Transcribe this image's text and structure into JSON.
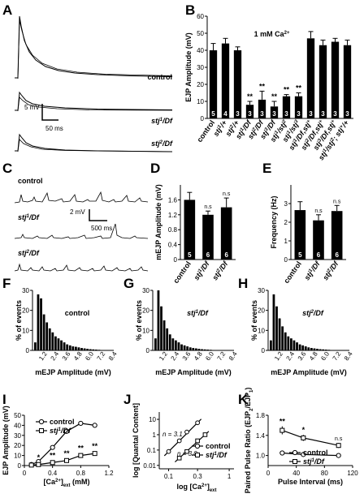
{
  "panel_labels": [
    "A",
    "B",
    "C",
    "D",
    "E",
    "F",
    "G",
    "H",
    "I",
    "J",
    "K"
  ],
  "traces_A": {
    "labels": [
      "control",
      "stj1/Df",
      "stj2/Df"
    ],
    "scale_v": "5 mV",
    "scale_t": "50 ms"
  },
  "traces_C": {
    "labels": [
      "control",
      "stj1/Df",
      "stj2/Df"
    ],
    "scale_v": "2 mV",
    "scale_t": "500 ms"
  },
  "chart_data": [
    {
      "panel": "B",
      "type": "bar",
      "ylabel": "EJP Amplitude (mV)",
      "ylim": [
        0,
        60
      ],
      "yticks": [
        0,
        10,
        20,
        30,
        40,
        50,
        60
      ],
      "annotation": "1 mM Ca2+",
      "categories": [
        "control",
        "stj1/+",
        "stj2/+",
        "stj1/Df",
        "stj2/Df",
        "stj3/Df",
        "stj1/stj2",
        "stj1/stj3",
        "stj1/Df,stj+",
        "stj2/Df,stj+",
        "stj3/Df,stj+",
        "stj1/stj2; stj+/+"
      ],
      "values": [
        40,
        44,
        40,
        8,
        11,
        7,
        13,
        13,
        47,
        43,
        45,
        43
      ],
      "errors": [
        4,
        3,
        2,
        2,
        5,
        3,
        1,
        2,
        4,
        3,
        2,
        3
      ],
      "n": [
        5,
        4,
        3,
        3,
        3,
        3,
        3,
        3,
        3,
        3,
        3,
        3
      ],
      "significance": [
        "",
        "",
        "",
        "**",
        "**",
        "**",
        "**",
        "**",
        "",
        "",
        "",
        ""
      ]
    },
    {
      "panel": "D",
      "type": "bar",
      "ylabel": "mEJP Amplitude (mV)",
      "ylim": [
        0,
        2.0
      ],
      "yticks": [
        0,
        0.4,
        0.8,
        1.2,
        1.6
      ],
      "categories": [
        "control",
        "stj1/Df",
        "stj2/Df"
      ],
      "values": [
        1.6,
        1.2,
        1.4
      ],
      "errors": [
        0.2,
        0.1,
        0.25
      ],
      "n": [
        5,
        6,
        6
      ],
      "significance": [
        "",
        "n.s",
        "n.s"
      ]
    },
    {
      "panel": "E",
      "type": "bar",
      "ylabel": "Frequency (Hz)",
      "ylim": [
        0,
        4
      ],
      "yticks": [
        0,
        1,
        2,
        3
      ],
      "categories": [
        "control",
        "stj1/Df",
        "stj2/Df"
      ],
      "values": [
        2.65,
        2.1,
        2.6
      ],
      "errors": [
        0.45,
        0.3,
        0.3
      ],
      "n": [
        5,
        6,
        6
      ],
      "significance": [
        "",
        "n.s",
        "n.s"
      ]
    },
    {
      "panel": "F",
      "type": "bar",
      "title": "control",
      "xlabel": "mEJP Amplitude (mV)",
      "ylabel": "% of events",
      "ylim": [
        0,
        30
      ],
      "yticks": [
        0,
        10,
        20,
        30
      ],
      "xticks": [
        "1.2",
        "2.4",
        "3.6",
        "4.8",
        "6.0",
        "7.2",
        "8.4"
      ],
      "values": [
        4,
        28,
        26,
        18,
        14,
        11,
        9,
        7,
        6,
        5,
        4,
        3,
        2.5,
        2,
        1.8,
        1.5,
        1.2,
        1,
        0.8,
        0.6,
        0.5,
        0.4,
        0.3,
        0.2,
        0.15,
        0.1
      ]
    },
    {
      "panel": "G",
      "type": "bar",
      "title": "stj1/Df",
      "xlabel": "mEJP Amplitude (mV)",
      "ylabel": "% of events",
      "ylim": [
        0,
        30
      ],
      "yticks": [
        0,
        10,
        20,
        30
      ],
      "xticks": [
        "1.2",
        "2.4",
        "3.6",
        "4.8",
        "6.0",
        "7.2",
        "8.4"
      ],
      "values": [
        6,
        30,
        22,
        15,
        11,
        8,
        6,
        5,
        4,
        3,
        2.5,
        2,
        1.5,
        1.2,
        1,
        0.8,
        0.6,
        0.5,
        0.4,
        0.3,
        0.2,
        0.15,
        0.1,
        0.1
      ]
    },
    {
      "panel": "H",
      "type": "bar",
      "title": "stj2/Df",
      "xlabel": "mEJP Amplitude (mV)",
      "ylabel": "% of events",
      "ylim": [
        0,
        30
      ],
      "yticks": [
        0,
        10,
        20,
        30
      ],
      "xticks": [
        "1.2",
        "2.4",
        "3.6",
        "4.8",
        "6.0",
        "7.2",
        "8.4"
      ],
      "values": [
        5,
        28,
        22,
        16,
        12,
        9,
        7,
        6,
        5,
        4,
        3,
        2.5,
        2,
        1.5,
        1.2,
        1,
        0.8,
        0.6,
        0.5,
        0.4,
        0.3,
        0.2,
        0.15,
        0.1
      ]
    },
    {
      "panel": "I",
      "type": "line",
      "xlabel": "[Ca2+]ext (mM)",
      "ylabel": "EJP Amplitude (mV)",
      "xlim": [
        0,
        1.2
      ],
      "ylim": [
        0,
        50
      ],
      "xticks": [
        0,
        0.4,
        0.8,
        1.2
      ],
      "yticks": [
        0,
        10,
        20,
        30,
        40,
        50
      ],
      "series": [
        {
          "name": "control",
          "x": [
            0.1,
            0.2,
            0.4,
            0.6,
            0.8,
            1.0
          ],
          "y": [
            1,
            4,
            18,
            34,
            42,
            40
          ],
          "err": [
            0.5,
            1,
            2,
            2,
            2,
            2
          ]
        },
        {
          "name": "stj1/Df",
          "x": [
            0.1,
            0.2,
            0.4,
            0.6,
            0.8,
            1.0
          ],
          "y": [
            0.5,
            1,
            3,
            5,
            10,
            12
          ],
          "err": [
            0.3,
            0.5,
            1,
            1.5,
            2,
            2
          ]
        }
      ],
      "significance": [
        {
          "x": 0.2,
          "text": "*"
        },
        {
          "x": 0.4,
          "text": "**"
        },
        {
          "x": 0.6,
          "text": "**"
        },
        {
          "x": 0.8,
          "text": "**"
        },
        {
          "x": 1.0,
          "text": "**"
        }
      ]
    },
    {
      "panel": "J",
      "type": "scatter",
      "xlabel": "log [Ca2+]ext",
      "ylabel": "log [Quantal Content]",
      "xticks": [
        "0.1",
        "0.3",
        "1"
      ],
      "yticks": [
        "0.01",
        "0.1",
        "1",
        "10"
      ],
      "series": [
        {
          "name": "control",
          "x": [
            0.1,
            0.15,
            0.2,
            0.3
          ],
          "y": [
            0.08,
            0.4,
            1.5,
            6
          ]
        },
        {
          "name": "stj1/Df",
          "x": [
            0.15,
            0.2,
            0.3,
            0.4
          ],
          "y": [
            0.03,
            0.08,
            0.4,
            1
          ]
        }
      ],
      "annotations": [
        "n = 3.1",
        "n = 3.0"
      ]
    },
    {
      "panel": "K",
      "type": "line",
      "xlabel": "Pulse Interval (ms)",
      "ylabel": "Paired Pulse Ratio (EJP2/EJP1)",
      "xlim": [
        0,
        120
      ],
      "ylim": [
        0.8,
        1.8
      ],
      "xticks": [
        0,
        40,
        80,
        120
      ],
      "yticks": [
        1.0,
        1.4,
        1.8
      ],
      "series": [
        {
          "name": "control",
          "x": [
            20,
            50,
            100
          ],
          "y": [
            1.05,
            1.02,
            1.0
          ],
          "err": [
            0.02,
            0.02,
            0.02
          ]
        },
        {
          "name": "stj1/Df",
          "x": [
            20,
            50,
            100
          ],
          "y": [
            1.5,
            1.35,
            1.2
          ],
          "err": [
            0.08,
            0.06,
            0.05
          ]
        }
      ],
      "significance": [
        {
          "x": 20,
          "text": "**"
        },
        {
          "x": 50,
          "text": "*"
        },
        {
          "x": 100,
          "text": "n.s"
        }
      ]
    }
  ]
}
